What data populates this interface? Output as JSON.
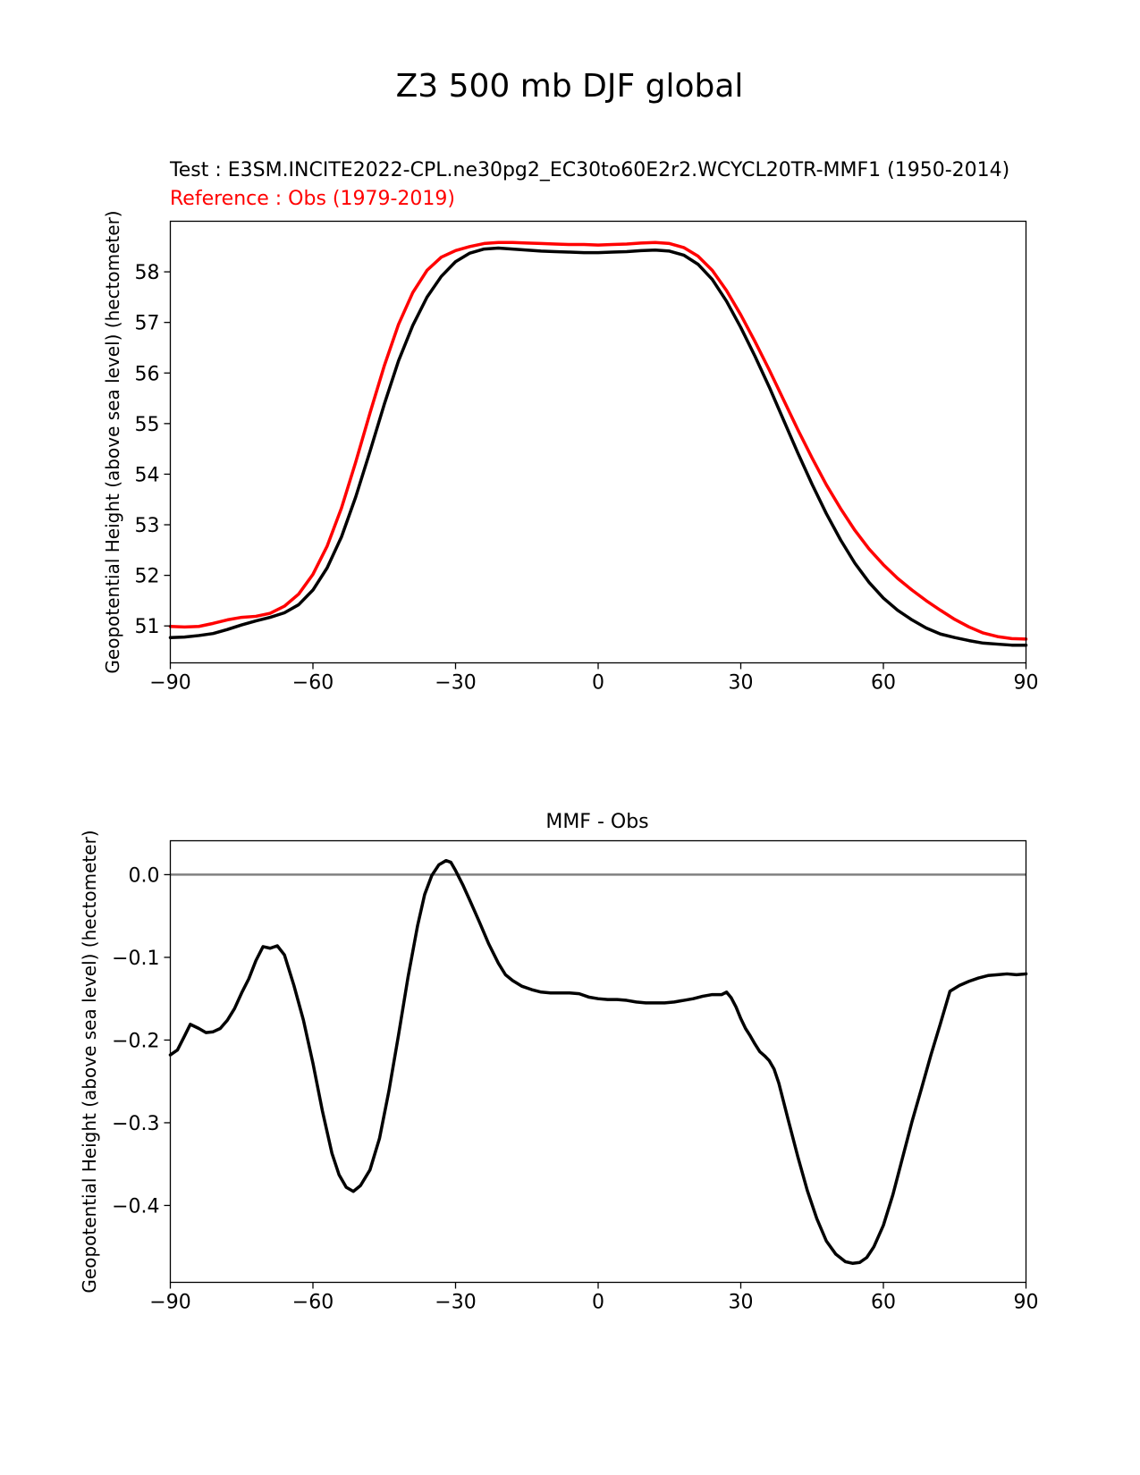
{
  "figure": {
    "title": "Z3 500 mb DJF global"
  },
  "chart_data": [
    {
      "type": "line",
      "test_label": "Test : E3SM.INCITE2022-CPL.ne30pg2_EC30to60E2r2.WCYCL20TR-MMF1 (1950-2014)",
      "reference_label": "Reference : Obs (1979-2019)",
      "title": "",
      "xlabel": "",
      "ylabel": "Geopotential Height (above sea level) (hectometer)",
      "xlim": [
        -90,
        90
      ],
      "ylim": [
        50.27,
        59.0
      ],
      "x_ticks": [
        -90,
        -60,
        -30,
        0,
        30,
        60,
        90
      ],
      "x_tick_labels": [
        "−90",
        "−60",
        "−30",
        "0",
        "30",
        "60",
        "90"
      ],
      "y_ticks": [
        51,
        52,
        53,
        54,
        55,
        56,
        57,
        58
      ],
      "y_tick_labels": [
        "51",
        "52",
        "53",
        "54",
        "55",
        "56",
        "57",
        "58"
      ],
      "grid": false,
      "series": [
        {
          "color": "#000000",
          "x": [
            -90,
            -87,
            -84,
            -81,
            -78,
            -75,
            -72,
            -69,
            -66,
            -63,
            -60,
            -57,
            -54,
            -51,
            -48,
            -45,
            -42,
            -39,
            -36,
            -33,
            -30,
            -27,
            -24,
            -21,
            -18,
            -15,
            -12,
            -9,
            -6,
            -3,
            0,
            3,
            6,
            9,
            12,
            15,
            18,
            21,
            24,
            27,
            30,
            33,
            36,
            39,
            42,
            45,
            48,
            51,
            54,
            57,
            60,
            63,
            66,
            69,
            72,
            75,
            78,
            81,
            84,
            87,
            90
          ],
          "y": [
            50.77,
            50.78,
            50.81,
            50.85,
            50.93,
            51.02,
            51.1,
            51.17,
            51.26,
            51.42,
            51.71,
            52.15,
            52.76,
            53.55,
            54.45,
            55.38,
            56.24,
            56.94,
            57.5,
            57.91,
            58.2,
            58.37,
            58.45,
            58.47,
            58.45,
            58.43,
            58.41,
            58.4,
            58.39,
            58.38,
            58.38,
            58.39,
            58.4,
            58.42,
            58.43,
            58.41,
            58.33,
            58.15,
            57.85,
            57.42,
            56.9,
            56.33,
            55.72,
            55.07,
            54.42,
            53.8,
            53.22,
            52.7,
            52.24,
            51.86,
            51.55,
            51.31,
            51.12,
            50.96,
            50.84,
            50.77,
            50.71,
            50.66,
            50.64,
            50.62,
            50.62
          ]
        },
        {
          "color": "#ff0000",
          "x": [
            -90,
            -87,
            -84,
            -81,
            -78,
            -75,
            -72,
            -69,
            -66,
            -63,
            -60,
            -57,
            -54,
            -51,
            -48,
            -45,
            -42,
            -39,
            -36,
            -33,
            -30,
            -27,
            -24,
            -21,
            -18,
            -15,
            -12,
            -9,
            -6,
            -3,
            0,
            3,
            6,
            9,
            12,
            15,
            18,
            21,
            24,
            27,
            30,
            33,
            36,
            39,
            42,
            45,
            48,
            51,
            54,
            57,
            60,
            63,
            66,
            69,
            72,
            75,
            78,
            81,
            84,
            87,
            90
          ],
          "y": [
            50.99,
            50.98,
            50.99,
            51.05,
            51.12,
            51.17,
            51.19,
            51.25,
            51.39,
            51.63,
            52.02,
            52.58,
            53.33,
            54.24,
            55.21,
            56.14,
            56.96,
            57.59,
            58.03,
            58.29,
            58.42,
            58.5,
            58.56,
            58.58,
            58.58,
            58.57,
            58.56,
            58.55,
            58.54,
            58.54,
            58.53,
            58.54,
            58.55,
            58.57,
            58.58,
            58.56,
            58.48,
            58.31,
            58.03,
            57.63,
            57.15,
            56.62,
            56.06,
            55.47,
            54.88,
            54.32,
            53.79,
            53.32,
            52.89,
            52.52,
            52.21,
            51.94,
            51.71,
            51.5,
            51.31,
            51.13,
            50.98,
            50.86,
            50.79,
            50.75,
            50.74
          ]
        }
      ]
    },
    {
      "type": "line",
      "title": "MMF - Obs",
      "xlabel": "",
      "ylabel": "Geopotential Height (above sea level) (hectometer)",
      "xlim": [
        -90,
        90
      ],
      "ylim": [
        -0.493,
        0.041
      ],
      "x_ticks": [
        -90,
        -60,
        -30,
        0,
        30,
        60,
        90
      ],
      "x_tick_labels": [
        "−90",
        "−60",
        "−30",
        "0",
        "30",
        "60",
        "90"
      ],
      "y_ticks": [
        0.0,
        -0.1,
        -0.2,
        -0.3,
        -0.4
      ],
      "y_tick_labels": [
        "0.0",
        "−0.1",
        "−0.2",
        "−0.3",
        "−0.4"
      ],
      "grid": false,
      "zero_line": {
        "y": 0.0,
        "color": "#808080"
      },
      "series": [
        {
          "color": "#000000",
          "x": [
            -90,
            -88.5,
            -87,
            -85.8,
            -84,
            -82.5,
            -81,
            -79.5,
            -78,
            -76.5,
            -75,
            -73.5,
            -72,
            -70.5,
            -69,
            -67.5,
            -66,
            -64,
            -62,
            -60,
            -58,
            -56,
            -54.5,
            -53,
            -51.5,
            -50,
            -48,
            -46,
            -44,
            -42,
            -40,
            -38,
            -36.5,
            -35,
            -33.5,
            -32,
            -31,
            -30,
            -28.5,
            -27,
            -25,
            -23,
            -21,
            -19.5,
            -18,
            -16,
            -14,
            -12,
            -10,
            -8,
            -6,
            -4,
            -2,
            0,
            2,
            4,
            6,
            8,
            10,
            12,
            14,
            16,
            18,
            20,
            22,
            24,
            26,
            27,
            28,
            29,
            30,
            31,
            32,
            33,
            34,
            35,
            36,
            37,
            38,
            40,
            42,
            44,
            46,
            48,
            50,
            52,
            53.5,
            55,
            56.5,
            58,
            60,
            62,
            64,
            66,
            68,
            70,
            72,
            74,
            76,
            78,
            80,
            82,
            84,
            86,
            88,
            90
          ],
          "y": [
            -0.218,
            -0.212,
            -0.195,
            -0.181,
            -0.186,
            -0.191,
            -0.19,
            -0.186,
            -0.176,
            -0.162,
            -0.143,
            -0.126,
            -0.104,
            -0.087,
            -0.089,
            -0.086,
            -0.097,
            -0.134,
            -0.176,
            -0.228,
            -0.286,
            -0.337,
            -0.363,
            -0.378,
            -0.383,
            -0.376,
            -0.357,
            -0.319,
            -0.261,
            -0.194,
            -0.124,
            -0.062,
            -0.024,
            -0.001,
            0.012,
            0.017,
            0.015,
            0.005,
            -0.012,
            -0.031,
            -0.057,
            -0.084,
            -0.107,
            -0.121,
            -0.128,
            -0.135,
            -0.139,
            -0.142,
            -0.143,
            -0.143,
            -0.143,
            -0.144,
            -0.148,
            -0.15,
            -0.151,
            -0.151,
            -0.152,
            -0.154,
            -0.155,
            -0.155,
            -0.155,
            -0.154,
            -0.152,
            -0.15,
            -0.147,
            -0.145,
            -0.145,
            -0.142,
            -0.149,
            -0.16,
            -0.174,
            -0.186,
            -0.195,
            -0.205,
            -0.214,
            -0.219,
            -0.225,
            -0.235,
            -0.252,
            -0.297,
            -0.341,
            -0.382,
            -0.416,
            -0.443,
            -0.459,
            -0.468,
            -0.47,
            -0.469,
            -0.463,
            -0.45,
            -0.424,
            -0.387,
            -0.343,
            -0.299,
            -0.259,
            -0.218,
            -0.18,
            -0.141,
            -0.134,
            -0.129,
            -0.125,
            -0.122,
            -0.121,
            -0.12,
            -0.121,
            -0.12
          ]
        }
      ]
    }
  ]
}
